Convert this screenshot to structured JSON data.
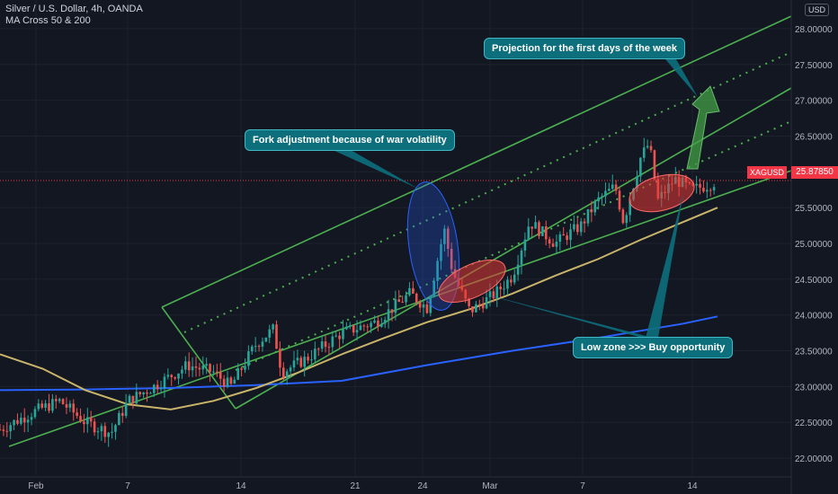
{
  "header": {
    "symbol_line": "Silver / U.S. Dollar, 4h, OANDA",
    "indicator_line": "MA Cross 50 & 200"
  },
  "price_axis": {
    "currency": "USD",
    "ticks": [
      "28.00000",
      "27.50000",
      "27.00000",
      "26.50000",
      "26.00000",
      "25.50000",
      "25.00000",
      "24.50000",
      "24.00000",
      "23.50000",
      "23.00000",
      "22.50000",
      "22.00000"
    ],
    "current_symbol": "XAGUSD",
    "current_price": "25.87850"
  },
  "time_axis": {
    "ticks": [
      "Feb",
      "7",
      "14",
      "21",
      "24",
      "Mar",
      "7",
      "14"
    ]
  },
  "annotations": {
    "projection": "Projection for the first days of the week",
    "fork": "Fork adjustment because of war volatility",
    "low_zone": "Low zone >>>  Buy opportunity"
  },
  "colors": {
    "background": "#131722",
    "up_candle": "#26a69a",
    "down_candle": "#ef5350",
    "channel": "#4caf50",
    "ma50": "#c9b46a",
    "ma200": "#2962ff",
    "highlight_red": "#e53935",
    "highlight_blue": "#2962ff",
    "callout": "#0d6f7c",
    "arrow_green": "#43a047"
  },
  "chart_data": {
    "type": "candlestick",
    "ylim": [
      21.75,
      28.25
    ],
    "current_price": 25.8785,
    "ma50": [
      {
        "t": 0,
        "v": 23.45
      },
      {
        "t": 0.05,
        "v": 23.25
      },
      {
        "t": 0.1,
        "v": 22.95
      },
      {
        "t": 0.15,
        "v": 22.75
      },
      {
        "t": 0.2,
        "v": 22.68
      },
      {
        "t": 0.25,
        "v": 22.8
      },
      {
        "t": 0.3,
        "v": 22.98
      },
      {
        "t": 0.35,
        "v": 23.2
      },
      {
        "t": 0.4,
        "v": 23.45
      },
      {
        "t": 0.45,
        "v": 23.68
      },
      {
        "t": 0.5,
        "v": 23.9
      },
      {
        "t": 0.55,
        "v": 24.08
      },
      {
        "t": 0.6,
        "v": 24.3
      },
      {
        "t": 0.65,
        "v": 24.55
      },
      {
        "t": 0.7,
        "v": 24.78
      },
      {
        "t": 0.75,
        "v": 25.05
      },
      {
        "t": 0.8,
        "v": 25.3
      },
      {
        "t": 0.84,
        "v": 25.5
      }
    ],
    "ma200": [
      {
        "t": 0,
        "v": 22.95
      },
      {
        "t": 0.1,
        "v": 22.96
      },
      {
        "t": 0.2,
        "v": 22.98
      },
      {
        "t": 0.3,
        "v": 23.02
      },
      {
        "t": 0.4,
        "v": 23.08
      },
      {
        "t": 0.5,
        "v": 23.3
      },
      {
        "t": 0.6,
        "v": 23.5
      },
      {
        "t": 0.7,
        "v": 23.68
      },
      {
        "t": 0.8,
        "v": 23.88
      },
      {
        "t": 0.84,
        "v": 23.98
      }
    ],
    "close_path": [
      {
        "t": 0.0,
        "v": 22.4
      },
      {
        "t": 0.04,
        "v": 22.65
      },
      {
        "t": 0.07,
        "v": 22.8
      },
      {
        "t": 0.1,
        "v": 22.5
      },
      {
        "t": 0.13,
        "v": 22.35
      },
      {
        "t": 0.15,
        "v": 22.8
      },
      {
        "t": 0.18,
        "v": 23.0
      },
      {
        "t": 0.22,
        "v": 23.3
      },
      {
        "t": 0.25,
        "v": 23.2
      },
      {
        "t": 0.27,
        "v": 23.0
      },
      {
        "t": 0.3,
        "v": 23.6
      },
      {
        "t": 0.32,
        "v": 23.8
      },
      {
        "t": 0.33,
        "v": 23.2
      },
      {
        "t": 0.36,
        "v": 23.4
      },
      {
        "t": 0.4,
        "v": 23.75
      },
      {
        "t": 0.44,
        "v": 23.9
      },
      {
        "t": 0.48,
        "v": 24.3
      },
      {
        "t": 0.5,
        "v": 24.1
      },
      {
        "t": 0.52,
        "v": 25.2
      },
      {
        "t": 0.53,
        "v": 24.6
      },
      {
        "t": 0.55,
        "v": 24.05
      },
      {
        "t": 0.58,
        "v": 24.3
      },
      {
        "t": 0.6,
        "v": 24.55
      },
      {
        "t": 0.62,
        "v": 25.3
      },
      {
        "t": 0.65,
        "v": 25.0
      },
      {
        "t": 0.68,
        "v": 25.25
      },
      {
        "t": 0.7,
        "v": 25.6
      },
      {
        "t": 0.72,
        "v": 25.8
      },
      {
        "t": 0.73,
        "v": 25.3
      },
      {
        "t": 0.75,
        "v": 26.2
      },
      {
        "t": 0.76,
        "v": 26.4
      },
      {
        "t": 0.77,
        "v": 25.6
      },
      {
        "t": 0.79,
        "v": 25.9
      },
      {
        "t": 0.81,
        "v": 25.75
      },
      {
        "t": 0.83,
        "v": 25.82
      },
      {
        "t": 0.84,
        "v": 25.88
      }
    ]
  }
}
